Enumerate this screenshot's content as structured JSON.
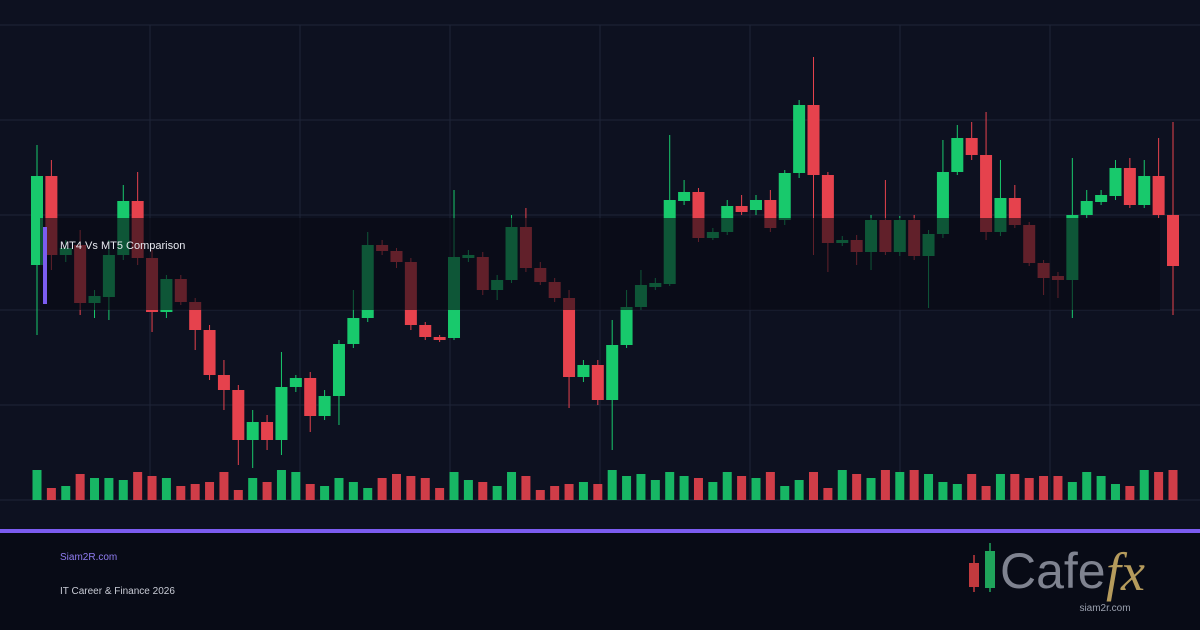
{
  "chart_data": {
    "type": "candlestick",
    "title": "MT4 Vs MT5 Comparison",
    "up_color": "#18c96c",
    "down_color": "#e6424d",
    "ylim": [
      0,
      500
    ],
    "open": [
      235,
      324,
      245,
      255,
      197,
      203,
      245,
      299,
      242,
      188,
      221,
      198,
      170,
      125,
      110,
      60,
      78,
      60,
      113,
      122,
      84,
      104,
      156,
      182,
      255,
      249,
      238,
      175,
      163,
      162,
      242,
      243,
      210,
      220,
      273,
      232,
      218,
      202,
      123,
      135,
      100,
      155,
      193,
      213,
      216,
      299,
      308,
      262,
      268,
      294,
      290,
      300,
      280,
      327,
      395,
      325,
      257,
      260,
      248,
      280,
      248,
      280,
      244,
      266,
      328,
      362,
      345,
      268,
      302,
      275,
      237,
      224,
      220,
      285,
      298,
      304,
      332,
      295,
      324,
      285
    ],
    "close": [
      324,
      245,
      252,
      197,
      204,
      245,
      299,
      242,
      188,
      221,
      198,
      170,
      125,
      110,
      60,
      78,
      60,
      113,
      122,
      84,
      104,
      156,
      182,
      255,
      249,
      238,
      175,
      163,
      160,
      243,
      245,
      210,
      220,
      273,
      232,
      218,
      202,
      123,
      135,
      100,
      155,
      193,
      215,
      217,
      300,
      308,
      262,
      268,
      294,
      288,
      300,
      272,
      327,
      395,
      325,
      257,
      260,
      248,
      280,
      248,
      280,
      244,
      266,
      328,
      362,
      345,
      268,
      302,
      275,
      237,
      222,
      220,
      285,
      299,
      305,
      332,
      295,
      324,
      285,
      234
    ],
    "high": [
      355,
      340,
      260,
      270,
      210,
      260,
      315,
      328,
      250,
      225,
      225,
      202,
      175,
      140,
      115,
      90,
      85,
      148,
      125,
      128,
      110,
      160,
      210,
      268,
      260,
      252,
      242,
      178,
      165,
      310,
      250,
      248,
      225,
      285,
      292,
      238,
      222,
      210,
      140,
      140,
      180,
      210,
      230,
      222,
      365,
      320,
      312,
      272,
      300,
      305,
      305,
      310,
      330,
      400,
      443,
      328,
      264,
      265,
      285,
      320,
      284,
      285,
      270,
      360,
      375,
      378,
      388,
      340,
      315,
      278,
      240,
      228,
      342,
      310,
      310,
      340,
      342,
      340,
      362,
      378
    ],
    "low": [
      165,
      230,
      238,
      185,
      182,
      180,
      240,
      235,
      168,
      182,
      195,
      150,
      120,
      90,
      35,
      32,
      50,
      45,
      108,
      68,
      80,
      75,
      152,
      178,
      245,
      232,
      170,
      160,
      158,
      160,
      238,
      205,
      200,
      217,
      228,
      215,
      198,
      92,
      118,
      95,
      50,
      152,
      190,
      210,
      214,
      295,
      258,
      260,
      265,
      285,
      285,
      268,
      275,
      322,
      245,
      228,
      254,
      235,
      230,
      245,
      244,
      240,
      192,
      262,
      325,
      340,
      260,
      264,
      272,
      234,
      205,
      202,
      182,
      282,
      295,
      300,
      292,
      292,
      282,
      185
    ],
    "volume": [
      30,
      12,
      14,
      26,
      22,
      22,
      20,
      28,
      24,
      22,
      14,
      16,
      18,
      28,
      10,
      22,
      18,
      30,
      28,
      16,
      14,
      22,
      18,
      12,
      22,
      26,
      24,
      22,
      12,
      28,
      20,
      18,
      14,
      28,
      24,
      10,
      14,
      16,
      18,
      16,
      30,
      24,
      26,
      20,
      28,
      24,
      22,
      18,
      28,
      24,
      22,
      28,
      14,
      20,
      28,
      12,
      30,
      26,
      22,
      30,
      28,
      30,
      26,
      18,
      16,
      26,
      14,
      26,
      26,
      22,
      24,
      24,
      18,
      28,
      24,
      16,
      14,
      30,
      28,
      30
    ]
  },
  "footer": {
    "site": "Siam2R.com",
    "tagline": "IT Career & Finance 2026"
  },
  "logo": {
    "brand": "Cafe",
    "suffix": "fx",
    "url": "siam2r.com"
  }
}
